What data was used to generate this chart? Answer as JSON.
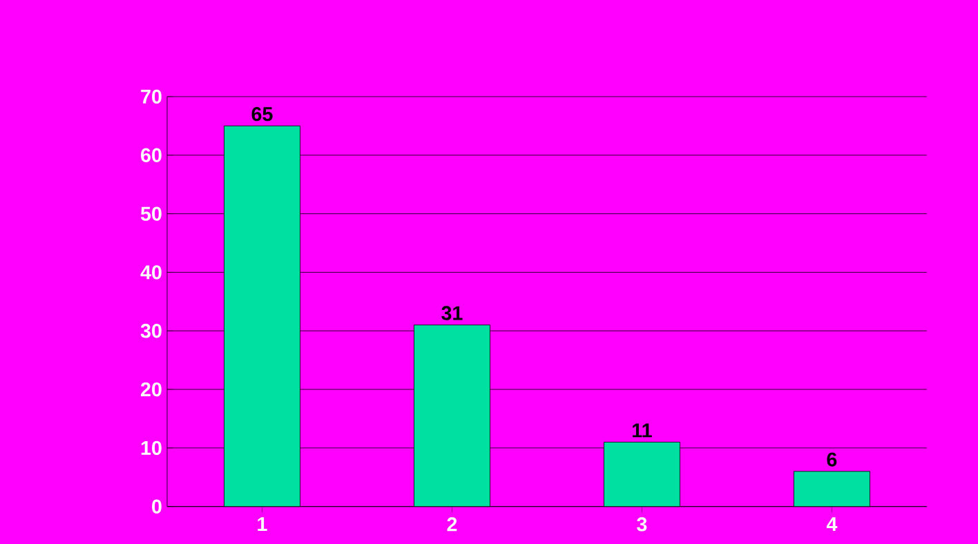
{
  "chart_data": {
    "type": "bar",
    "categories": [
      "1",
      "2",
      "3",
      "4"
    ],
    "values": [
      65,
      31,
      11,
      6
    ],
    "color": "#00e0a0",
    "ylim": [
      0,
      70
    ],
    "yticks": [
      0,
      10,
      20,
      30,
      40,
      50,
      60,
      70
    ],
    "grid": "y",
    "data_labels": true
  }
}
